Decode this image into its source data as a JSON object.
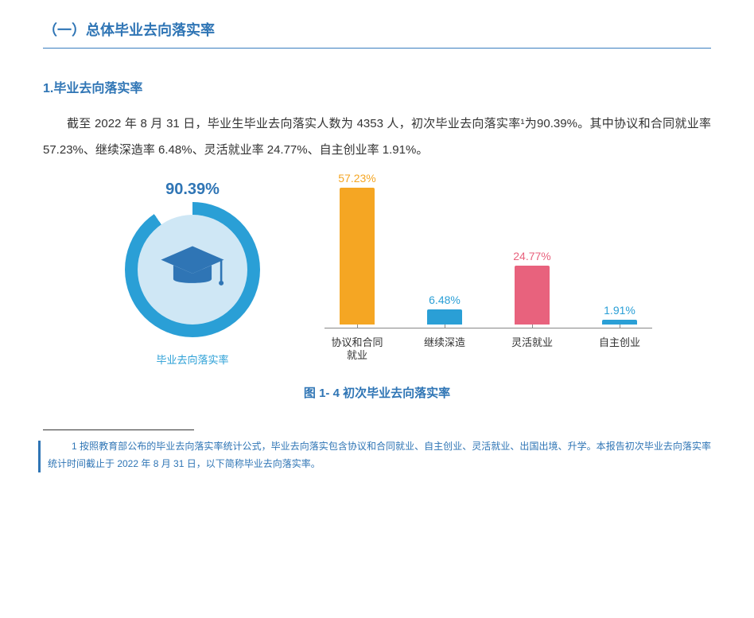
{
  "colors": {
    "primaryBlue": "#2f75b5",
    "accentBlue": "#2a9fd6",
    "orange": "#f5a623",
    "pink": "#e8627d",
    "lightBlue": "#cfe7f5",
    "gaugeGap": "#ffffff",
    "textDark": "#333333",
    "axisGray": "#888888"
  },
  "section": {
    "heading": "（一）总体毕业去向落实率",
    "subheading": "1.毕业去向落实率",
    "body": "截至 2022 年 8 月 31 日，毕业生毕业去向落实人数为 4353 人，初次毕业去向落实率¹为90.39%。其中协议和合同就业率 57.23%、继续深造率 6.48%、灵活就业率 24.77%、自主创业率 1.91%。"
  },
  "gauge": {
    "percent": 90.39,
    "percentLabel": "90.39%",
    "caption": "毕业去向落实率",
    "ringFill": "#2a9fd6",
    "ringBg": "#ffffff",
    "innerBg": "#cfe7f5",
    "iconColor": "#2f75b5"
  },
  "barChart": {
    "maxValue": 60,
    "plotHeight": 180,
    "bars": [
      {
        "label": "协议和合同就业",
        "value": 57.23,
        "valueLabel": "57.23%",
        "color": "#f5a623",
        "labelColor": "#f5a623"
      },
      {
        "label": "继续深造",
        "value": 6.48,
        "valueLabel": "6.48%",
        "color": "#2a9fd6",
        "labelColor": "#2a9fd6"
      },
      {
        "label": "灵活就业",
        "value": 24.77,
        "valueLabel": "24.77%",
        "color": "#e8627d",
        "labelColor": "#e8627d"
      },
      {
        "label": "自主创业",
        "value": 1.91,
        "valueLabel": "1.91%",
        "color": "#2a9fd6",
        "labelColor": "#2a9fd6"
      }
    ],
    "caption": "图 1- 4  初次毕业去向落实率"
  },
  "footnote": {
    "barColor": "#2f75b5",
    "text": "1 按照教育部公布的毕业去向落实率统计公式，毕业去向落实包含协议和合同就业、自主创业、灵活就业、出国出境、升学。本报告初次毕业去向落实率统计时间截止于 2022 年 8 月 31 日，以下简称毕业去向落实率。"
  }
}
